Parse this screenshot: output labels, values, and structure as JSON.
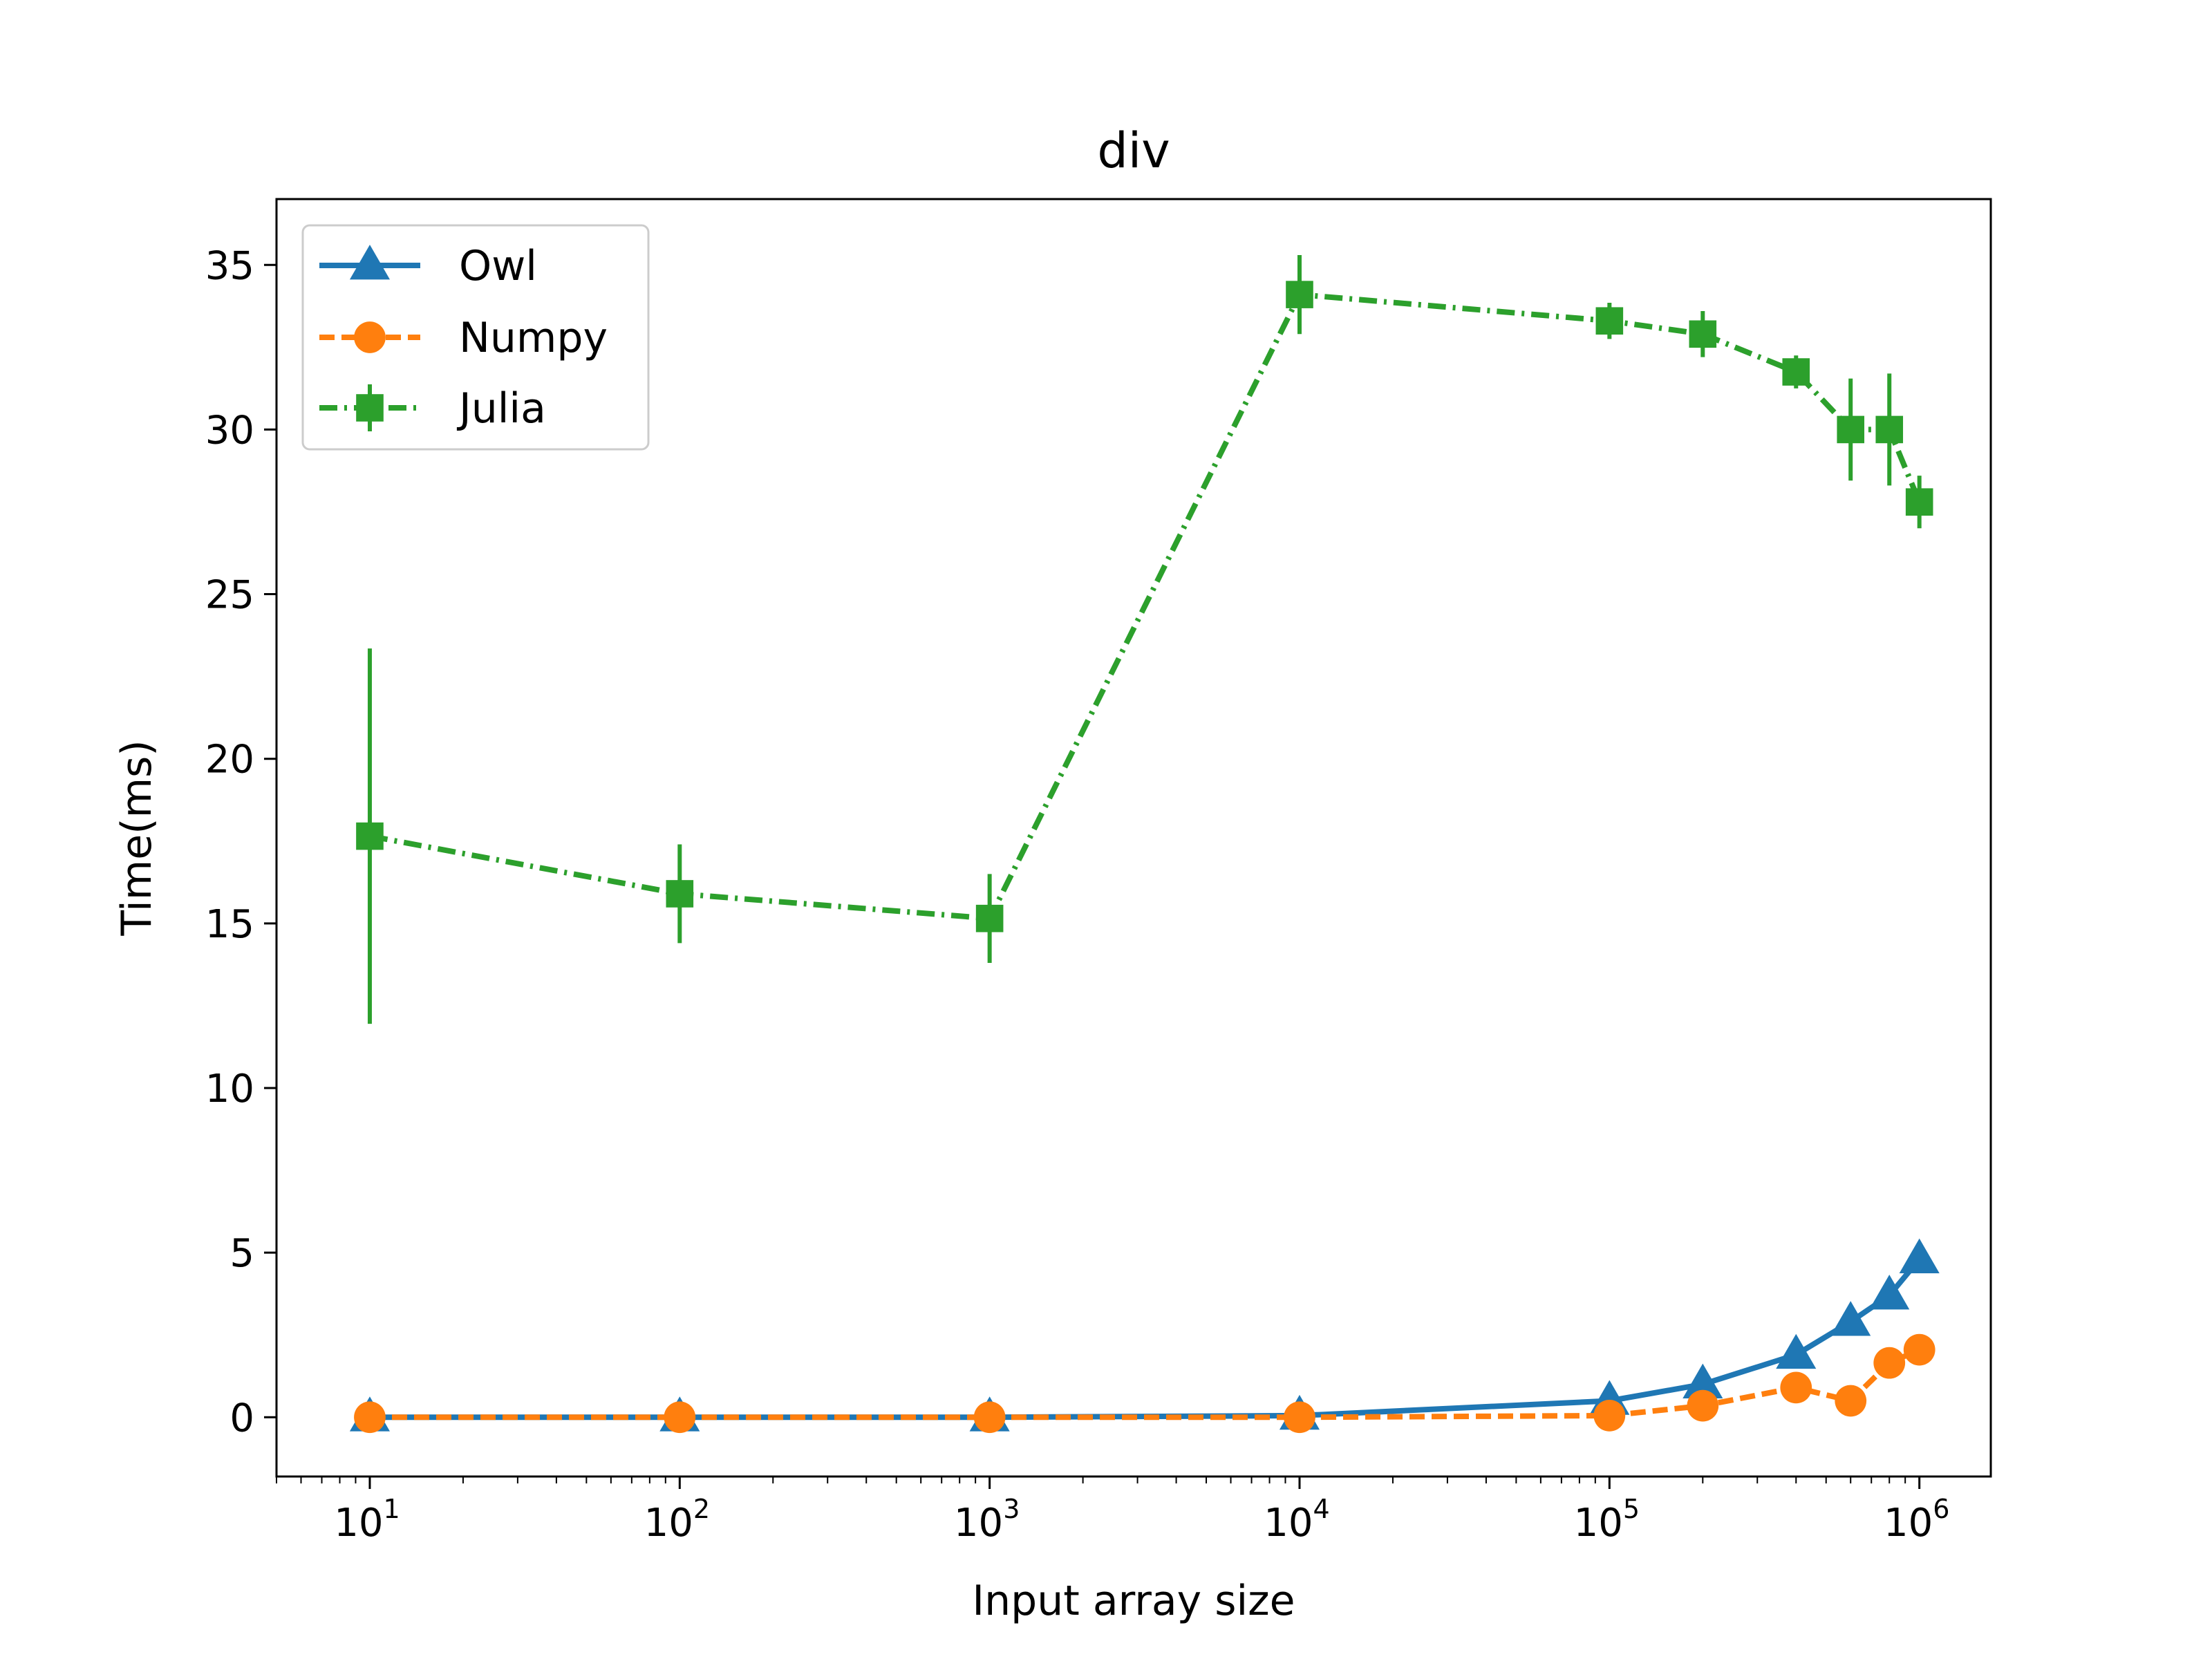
{
  "chart_data": {
    "type": "line",
    "title": "div",
    "xlabel": "Input array size",
    "ylabel": "Time(ms)",
    "xscale": "log",
    "xlim": [
      5,
      1700000
    ],
    "ylim": [
      -1.8,
      37
    ],
    "x_ticks": [
      {
        "value": 10,
        "base": "10",
        "exp": "1"
      },
      {
        "value": 100,
        "base": "10",
        "exp": "2"
      },
      {
        "value": 1000,
        "base": "10",
        "exp": "3"
      },
      {
        "value": 10000,
        "base": "10",
        "exp": "4"
      },
      {
        "value": 100000,
        "base": "10",
        "exp": "5"
      },
      {
        "value": 1000000,
        "base": "10",
        "exp": "6"
      }
    ],
    "y_ticks": [
      {
        "value": 0,
        "label": "0"
      },
      {
        "value": 5,
        "label": "5"
      },
      {
        "value": 10,
        "label": "10"
      },
      {
        "value": 15,
        "label": "15"
      },
      {
        "value": 20,
        "label": "20"
      },
      {
        "value": 25,
        "label": "25"
      },
      {
        "value": 30,
        "label": "30"
      },
      {
        "value": 35,
        "label": "35"
      }
    ],
    "grid": false,
    "legend_position": "top-left",
    "x": [
      10,
      100,
      1000,
      10000,
      100000,
      200000,
      400000,
      600000,
      800000,
      1000000
    ],
    "series": [
      {
        "name": "Owl",
        "color": "#1f77b4",
        "linestyle": "solid",
        "marker": "triangle",
        "values": [
          0.0,
          0.0,
          0.0,
          0.05,
          0.5,
          1.0,
          1.9,
          2.9,
          3.7,
          4.8
        ],
        "errors": [
          0,
          0,
          0,
          0,
          0,
          0,
          0,
          0,
          0,
          0
        ]
      },
      {
        "name": "Numpy",
        "color": "#ff7f0e",
        "linestyle": "dashed",
        "marker": "circle",
        "values": [
          0.0,
          0.0,
          0.0,
          0.0,
          0.05,
          0.35,
          0.9,
          0.5,
          1.65,
          2.05
        ],
        "errors": [
          0,
          0,
          0,
          0,
          0,
          0,
          0,
          0,
          0,
          0
        ]
      },
      {
        "name": "Julia",
        "color": "#2ca02c",
        "linestyle": "dashdot",
        "marker": "square",
        "values": [
          17.65,
          15.9,
          15.15,
          34.1,
          33.3,
          32.9,
          31.75,
          30.0,
          30.0,
          27.8
        ],
        "errors": [
          5.7,
          1.5,
          1.35,
          1.2,
          0.55,
          0.7,
          0.5,
          1.55,
          1.7,
          0.8
        ]
      }
    ]
  }
}
